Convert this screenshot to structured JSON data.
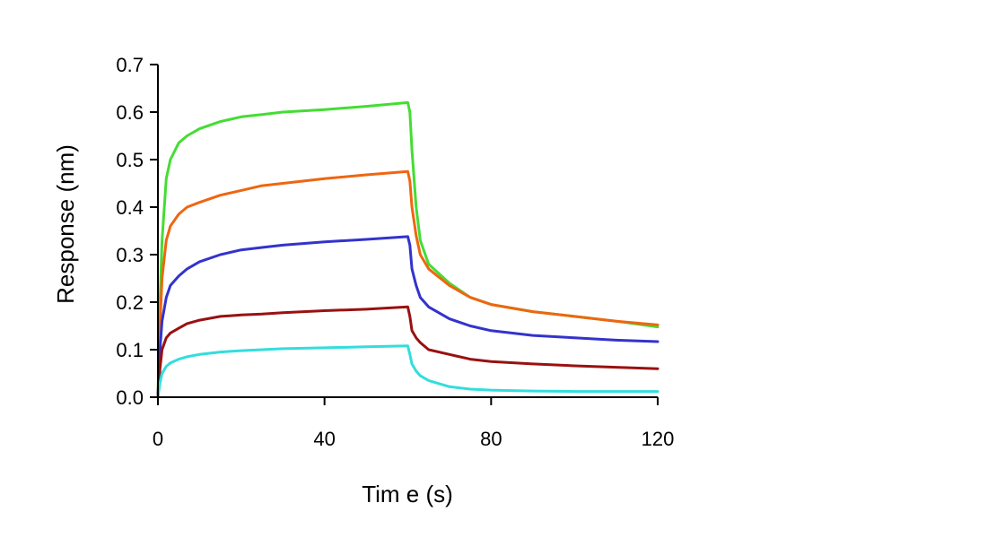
{
  "chart_data": {
    "type": "line",
    "title": "",
    "xlabel": "Tim e (s)",
    "ylabel": "Response (nm)",
    "xlim": [
      0,
      120
    ],
    "ylim": [
      0,
      0.7
    ],
    "x_ticks": [
      0,
      40,
      80,
      120
    ],
    "x_tick_labels": [
      "0",
      "40",
      "80",
      "120"
    ],
    "y_ticks": [
      0.0,
      0.1,
      0.2,
      0.3,
      0.4,
      0.5,
      0.6,
      0.7
    ],
    "y_tick_labels": [
      "0.0",
      "0.1",
      "0.2",
      "0.3",
      "0.4",
      "0.5",
      "0.6",
      "0.7"
    ],
    "grid": false,
    "legend": "none",
    "x": [
      0,
      0.5,
      1,
      2,
      3,
      5,
      7,
      10,
      15,
      20,
      25,
      30,
      40,
      50,
      60,
      60.5,
      61,
      62,
      63,
      65,
      70,
      75,
      80,
      90,
      100,
      110,
      120
    ],
    "series": [
      {
        "color": "#44dd33",
        "values": [
          0,
          0.2,
          0.33,
          0.46,
          0.5,
          0.535,
          0.55,
          0.565,
          0.58,
          0.59,
          0.595,
          0.6,
          0.605,
          0.612,
          0.62,
          0.6,
          0.52,
          0.4,
          0.33,
          0.28,
          0.24,
          0.21,
          0.195,
          0.18,
          0.17,
          0.16,
          0.148
        ]
      },
      {
        "color": "#ee6611",
        "values": [
          0,
          0.15,
          0.25,
          0.33,
          0.36,
          0.385,
          0.4,
          0.41,
          0.425,
          0.435,
          0.445,
          0.45,
          0.46,
          0.468,
          0.475,
          0.455,
          0.4,
          0.34,
          0.3,
          0.27,
          0.235,
          0.21,
          0.195,
          0.18,
          0.17,
          0.16,
          0.152
        ]
      },
      {
        "color": "#3333cc",
        "values": [
          0,
          0.1,
          0.16,
          0.21,
          0.235,
          0.255,
          0.27,
          0.285,
          0.3,
          0.31,
          0.315,
          0.32,
          0.327,
          0.332,
          0.338,
          0.32,
          0.27,
          0.235,
          0.21,
          0.19,
          0.165,
          0.15,
          0.14,
          0.13,
          0.125,
          0.12,
          0.117
        ]
      },
      {
        "color": "#991111",
        "values": [
          0,
          0.06,
          0.1,
          0.125,
          0.135,
          0.145,
          0.155,
          0.162,
          0.17,
          0.173,
          0.175,
          0.178,
          0.182,
          0.185,
          0.19,
          0.17,
          0.14,
          0.125,
          0.115,
          0.1,
          0.09,
          0.08,
          0.075,
          0.07,
          0.066,
          0.063,
          0.06
        ]
      },
      {
        "color": "#33dddd",
        "values": [
          0,
          0.03,
          0.05,
          0.065,
          0.072,
          0.08,
          0.085,
          0.09,
          0.095,
          0.098,
          0.1,
          0.102,
          0.104,
          0.106,
          0.108,
          0.09,
          0.07,
          0.055,
          0.045,
          0.035,
          0.022,
          0.017,
          0.015,
          0.013,
          0.012,
          0.012,
          0.012
        ]
      }
    ]
  }
}
